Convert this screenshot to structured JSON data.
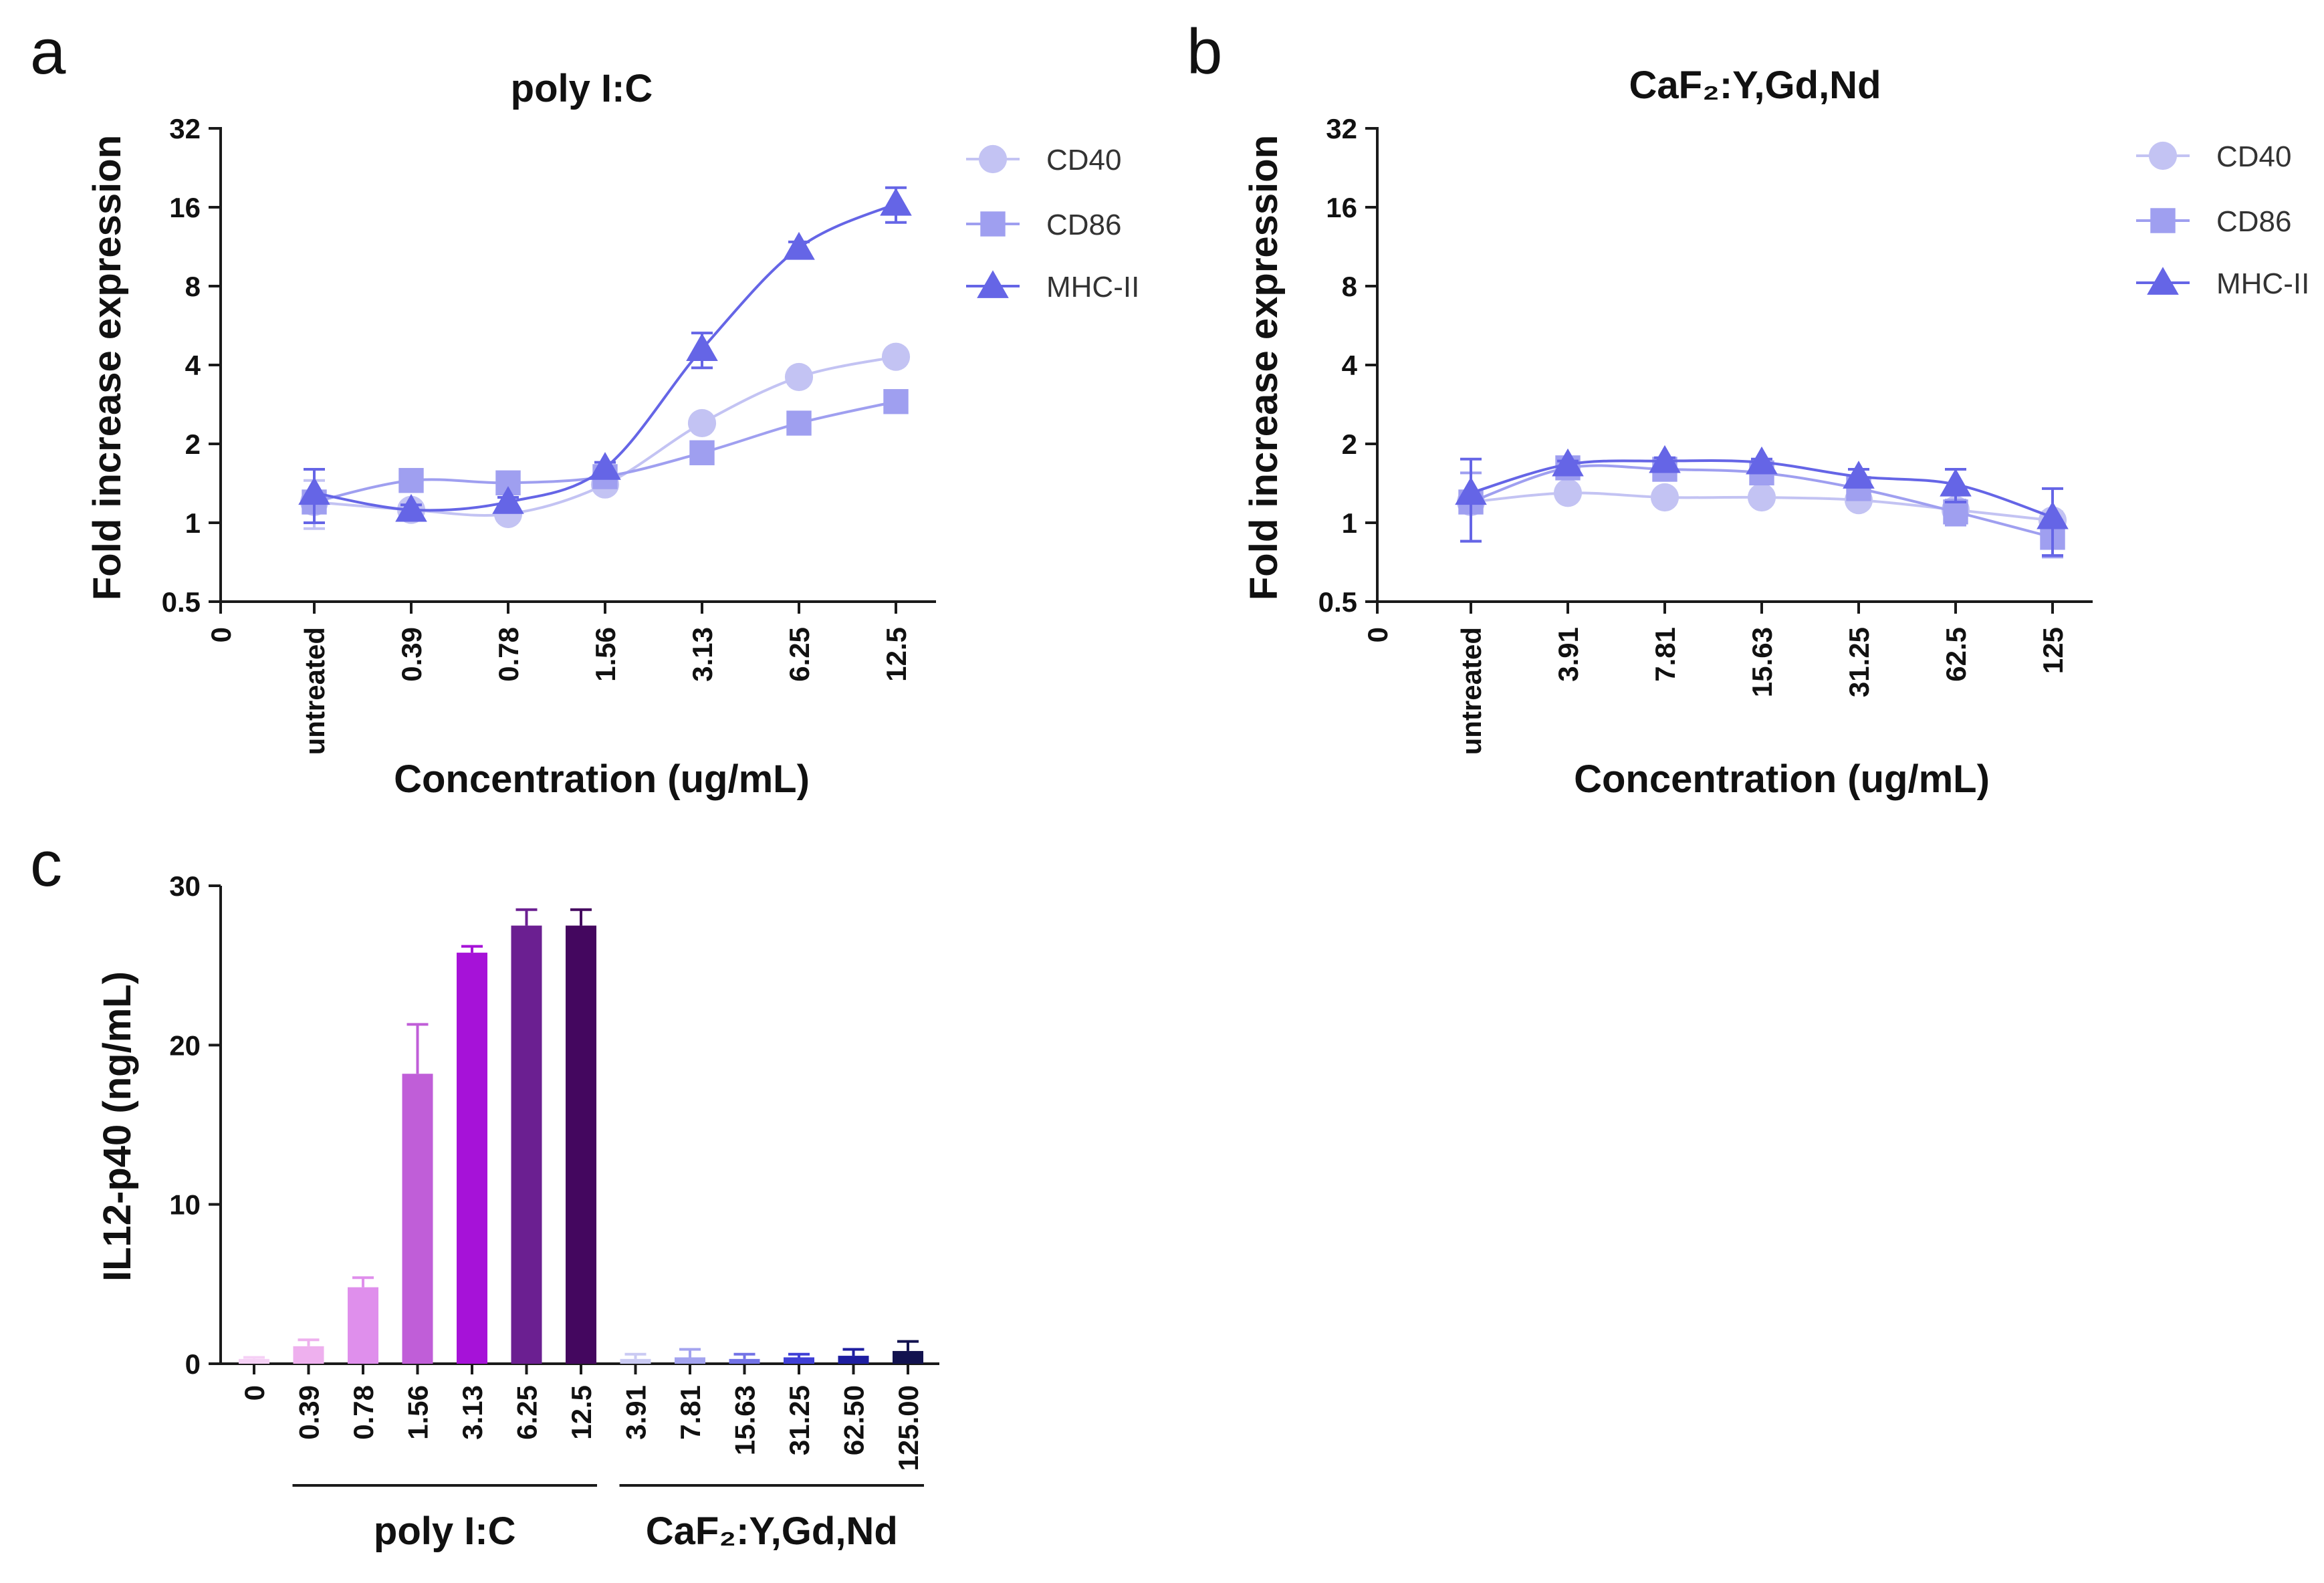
{
  "panel_letters": [
    "a",
    "b",
    "c"
  ],
  "chart_data": [
    {
      "panel": "a",
      "type": "line",
      "title": "poly I:C",
      "xlabel": "Concentration (ug/mL)",
      "ylabel": "Fold increase expression",
      "yscale": "log2",
      "ylim": [
        0.5,
        32
      ],
      "yticks": [
        "0.5",
        "1",
        "2",
        "4",
        "8",
        "16",
        "32"
      ],
      "origin_label": "0",
      "categories": [
        "untreated",
        "0.39",
        "0.78",
        "1.56",
        "3.13",
        "6.25",
        "12.5"
      ],
      "series": [
        {
          "name": "CD40",
          "marker": "circle",
          "color": "#c3c3f3",
          "values": [
            1.2,
            1.12,
            1.08,
            1.4,
            2.4,
            3.6,
            4.3
          ],
          "errors": [
            0.25,
            0.04,
            0.04,
            0.06,
            0.15,
            0.15,
            0.15
          ]
        },
        {
          "name": "CD86",
          "marker": "square",
          "color": "#9f9ff0",
          "values": [
            1.2,
            1.45,
            1.42,
            1.5,
            1.85,
            2.4,
            2.9
          ],
          "errors": [
            0.08,
            0.04,
            0.04,
            0.05,
            0.08,
            0.1,
            0.2
          ]
        },
        {
          "name": "MHC-II",
          "marker": "triangle",
          "color": "#6565e6",
          "values": [
            1.3,
            1.12,
            1.2,
            1.62,
            4.6,
            11.2,
            16.5
          ],
          "errors": [
            0.3,
            0.05,
            0.05,
            0.08,
            0.7,
            0.6,
            2.5
          ]
        }
      ]
    },
    {
      "panel": "b",
      "type": "line",
      "title": "CaF₂:Y,Gd,Nd",
      "xlabel": "Concentration (ug/mL)",
      "ylabel": "Fold increase expression",
      "yscale": "log2",
      "ylim": [
        0.5,
        32
      ],
      "yticks": [
        "0.5",
        "1",
        "2",
        "4",
        "8",
        "16",
        "32"
      ],
      "origin_label": "0",
      "categories": [
        "untreated",
        "3.91",
        "7.81",
        "15.63",
        "31.25",
        "62.5",
        "125"
      ],
      "series": [
        {
          "name": "CD40",
          "marker": "circle",
          "color": "#c3c3f3",
          "values": [
            1.2,
            1.3,
            1.25,
            1.25,
            1.22,
            1.12,
            1.02
          ],
          "errors": [
            0.05,
            0.04,
            0.04,
            0.04,
            0.04,
            0.06,
            0.08
          ]
        },
        {
          "name": "CD86",
          "marker": "square",
          "color": "#9f9ff0",
          "values": [
            1.2,
            1.62,
            1.6,
            1.55,
            1.35,
            1.1,
            0.88
          ],
          "errors": [
            0.35,
            0.06,
            0.08,
            0.08,
            0.08,
            0.12,
            0.14
          ]
        },
        {
          "name": "MHC-II",
          "marker": "triangle",
          "color": "#6565e6",
          "values": [
            1.3,
            1.67,
            1.72,
            1.7,
            1.5,
            1.4,
            1.05
          ],
          "errors": [
            0.45,
            0.05,
            0.05,
            0.05,
            0.1,
            0.2,
            0.3
          ]
        }
      ]
    },
    {
      "panel": "c",
      "type": "bar",
      "title": "",
      "xlabel": "",
      "ylabel": "IL12-p40 (ng/mL)",
      "ylim": [
        0,
        30
      ],
      "yticks": [
        "0",
        "10",
        "20",
        "30"
      ],
      "categories": [
        "0",
        "0.39",
        "0.78",
        "1.56",
        "3.13",
        "6.25",
        "12.5",
        "3.91",
        "7.81",
        "15.63",
        "31.25",
        "62.50",
        "125.00"
      ],
      "values": [
        0.3,
        1.1,
        4.8,
        18.2,
        25.8,
        27.5,
        27.5,
        0.3,
        0.4,
        0.3,
        0.4,
        0.5,
        0.8
      ],
      "errors": [
        0.1,
        0.4,
        0.6,
        3.1,
        0.4,
        1.0,
        1.0,
        0.3,
        0.5,
        0.3,
        0.2,
        0.4,
        0.6
      ],
      "colors": [
        "#f5d0f5",
        "#eeb0ee",
        "#df8fec",
        "#c05ed8",
        "#a612d8",
        "#6b1f91",
        "#44075f",
        "#cacaf3",
        "#a3a3ef",
        "#7272e6",
        "#3f3fd6",
        "#1e1ea0",
        "#12124f"
      ],
      "groups": [
        {
          "label": "poly I:C",
          "first": 1,
          "last": 6
        },
        {
          "label": "CaF₂:Y,Gd,Nd",
          "first": 7,
          "last": 12
        }
      ]
    }
  ]
}
